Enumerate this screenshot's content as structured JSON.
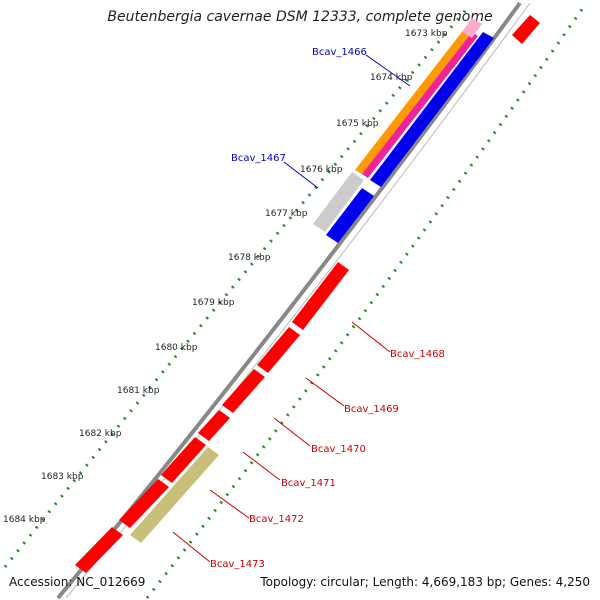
{
  "title": "Beutenbergia cavernae DSM 12333, complete genome",
  "footer": {
    "accession": "Accession: NC_012669",
    "summary": "Topology: circular; Length: 4,669,183 bp; Genes: 4,250"
  },
  "ticks": [
    "1673 kbp",
    "1674 kbp",
    "1675 kbp",
    "1676 kbp",
    "1677 kbp",
    "1678 kbp",
    "1679 kbp",
    "1680 kbp",
    "1681 kbp",
    "1682 kbp",
    "1683 kbp",
    "1684 kbp"
  ],
  "genes_blue": [
    "Bcav_1466",
    "Bcav_1467"
  ],
  "genes_red": [
    "Bcav_1468",
    "Bcav_1469",
    "Bcav_1470",
    "Bcav_1471",
    "Bcav_1472",
    "Bcav_1473"
  ],
  "colors": {
    "forward_gene": "#ff0000",
    "reverse_gene": "#0000ee",
    "orange": "#ff9900",
    "magenta": "#ee2299",
    "pink": "#ffaacc",
    "grey": "#cccccc",
    "khaki": "#c8c07a",
    "backbone": "#808080",
    "dots": "#228b22",
    "blue_label": "#0000cc",
    "red_label": "#cc0000"
  }
}
